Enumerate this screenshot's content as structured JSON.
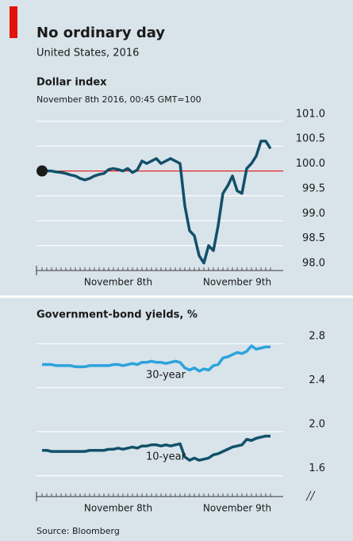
{
  "header": {
    "title": "No ordinary day",
    "subtitle": "United States, 2016"
  },
  "chart_data": [
    {
      "type": "line",
      "title": "Dollar index",
      "subtitle": "November 8th 2016, 00:45 GMT=100",
      "categories": [
        null,
        null,
        null,
        null,
        null,
        null,
        null,
        null,
        null,
        null,
        null,
        null,
        null,
        null,
        null,
        null,
        "November 8th",
        null,
        null,
        null,
        null,
        null,
        null,
        null,
        null,
        null,
        null,
        null,
        null,
        null,
        null,
        null,
        null,
        null,
        null,
        null,
        null,
        null,
        null,
        null,
        null,
        "November 9th",
        null,
        null,
        null,
        null,
        null,
        null,
        null
      ],
      "series": [
        {
          "color": "#12506a",
          "values": [
            100.0,
            100.0,
            100.0,
            99.98,
            99.97,
            99.95,
            99.92,
            99.9,
            99.85,
            99.82,
            99.85,
            99.9,
            99.93,
            99.95,
            100.03,
            100.05,
            100.03,
            100.0,
            100.05,
            99.97,
            100.02,
            100.2,
            100.15,
            100.2,
            100.25,
            100.15,
            100.2,
            100.25,
            100.2,
            100.15,
            99.3,
            98.8,
            98.7,
            98.3,
            98.15,
            98.5,
            98.4,
            98.9,
            99.55,
            99.7,
            99.9,
            99.6,
            99.55,
            100.05,
            100.15,
            100.3,
            100.6,
            100.6,
            100.45
          ]
        }
      ],
      "ylim": [
        98.0,
        101.3
      ],
      "yticks": [
        {
          "value": 98,
          "label": "98.0"
        },
        98.5,
        {
          "value": 99,
          "label": "99.0"
        },
        99.5,
        {
          "value": 100,
          "label": "100.0"
        },
        100.5,
        {
          "value": 101,
          "label": "101.0"
        }
      ],
      "reference_line": {
        "value": 100,
        "color": "#e3120b"
      },
      "start_marker": true,
      "grid": true
    },
    {
      "type": "line",
      "title": "Government-bond yields, %",
      "categories": [
        null,
        null,
        null,
        null,
        null,
        null,
        null,
        null,
        null,
        null,
        null,
        null,
        null,
        null,
        null,
        null,
        "November 8th",
        null,
        null,
        null,
        null,
        null,
        null,
        null,
        null,
        null,
        null,
        null,
        null,
        null,
        null,
        null,
        null,
        null,
        null,
        null,
        null,
        null,
        null,
        null,
        null,
        "November 9th",
        null,
        null,
        null,
        null,
        null,
        null,
        null
      ],
      "series": [
        {
          "name": "30-year",
          "color": "#2ba3dc",
          "values": [
            2.61,
            2.61,
            2.61,
            2.6,
            2.6,
            2.6,
            2.6,
            2.59,
            2.59,
            2.59,
            2.6,
            2.6,
            2.6,
            2.6,
            2.6,
            2.61,
            2.61,
            2.6,
            2.61,
            2.62,
            2.61,
            2.63,
            2.63,
            2.64,
            2.63,
            2.63,
            2.62,
            2.63,
            2.64,
            2.63,
            2.58,
            2.56,
            2.58,
            2.55,
            2.57,
            2.56,
            2.6,
            2.61,
            2.67,
            2.68,
            2.7,
            2.72,
            2.71,
            2.73,
            2.78,
            2.75,
            2.76,
            2.77,
            2.77
          ]
        },
        {
          "name": "10-year",
          "color": "#12506a",
          "values": [
            1.83,
            1.83,
            1.82,
            1.82,
            1.82,
            1.82,
            1.82,
            1.82,
            1.82,
            1.82,
            1.83,
            1.83,
            1.83,
            1.83,
            1.84,
            1.84,
            1.85,
            1.84,
            1.85,
            1.86,
            1.85,
            1.87,
            1.87,
            1.88,
            1.88,
            1.87,
            1.88,
            1.87,
            1.88,
            1.89,
            1.77,
            1.74,
            1.76,
            1.74,
            1.75,
            1.76,
            1.79,
            1.8,
            1.82,
            1.84,
            1.86,
            1.87,
            1.88,
            1.93,
            1.92,
            1.94,
            1.95,
            1.96,
            1.96
          ]
        }
      ],
      "ylim": [
        1.41,
        2.96
      ],
      "yticks": [
        1.6,
        {
          "value": 2,
          "label": "2.0"
        },
        2.4,
        2.8
      ],
      "grid": true
    }
  ],
  "source": "Source: Bloomberg"
}
